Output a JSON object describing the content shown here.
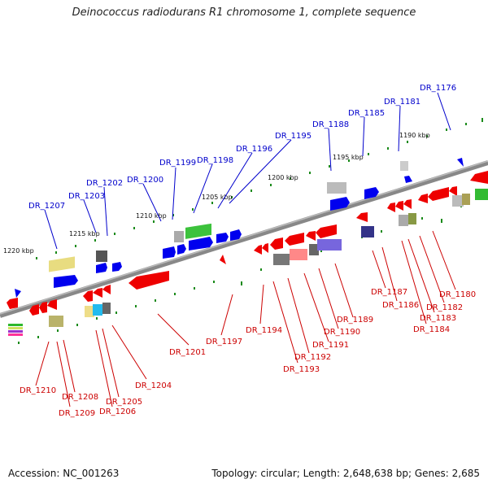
{
  "header": {
    "title": "Deinococcus radiodurans R1 chromosome 1, complete sequence"
  },
  "footer": {
    "accession": "Accession: NC_001263",
    "summary": "Topology: circular; Length: 2,648,638 bp; Genes: 2,685"
  },
  "colors": {
    "backbone": "#8a8a8a",
    "forward_label": "#0000cc",
    "reverse_label": "#cc0000",
    "tick": "#1a8a1a",
    "forward_gene": "#0000ee",
    "reverse_gene": "#ee0000"
  },
  "ruler_labels": [
    "1220 kbp",
    "1215 kbp",
    "1210 kbp",
    "1205 kbp",
    "1200 kbp",
    "1195 kbp",
    "1190 kbp"
  ],
  "forward_gene_labels": [
    "DR_1207",
    "DR_1203",
    "DR_1202",
    "DR_1200",
    "DR_1199",
    "DR_1198",
    "DR_1196",
    "DR_1195",
    "DR_1188",
    "DR_1185",
    "DR_1181",
    "DR_1176"
  ],
  "reverse_gene_labels": [
    "DR_1210",
    "DR_1208",
    "DR_1209",
    "DR_1205",
    "DR_1206",
    "DR_1204",
    "DR_1201",
    "DR_1197",
    "DR_1194",
    "DR_1193",
    "DR_1192",
    "DR_1191",
    "DR_1190",
    "DR_1189",
    "DR_1187",
    "DR_1186",
    "DR_1184",
    "DR_1183",
    "DR_1182",
    "DR_1180"
  ]
}
